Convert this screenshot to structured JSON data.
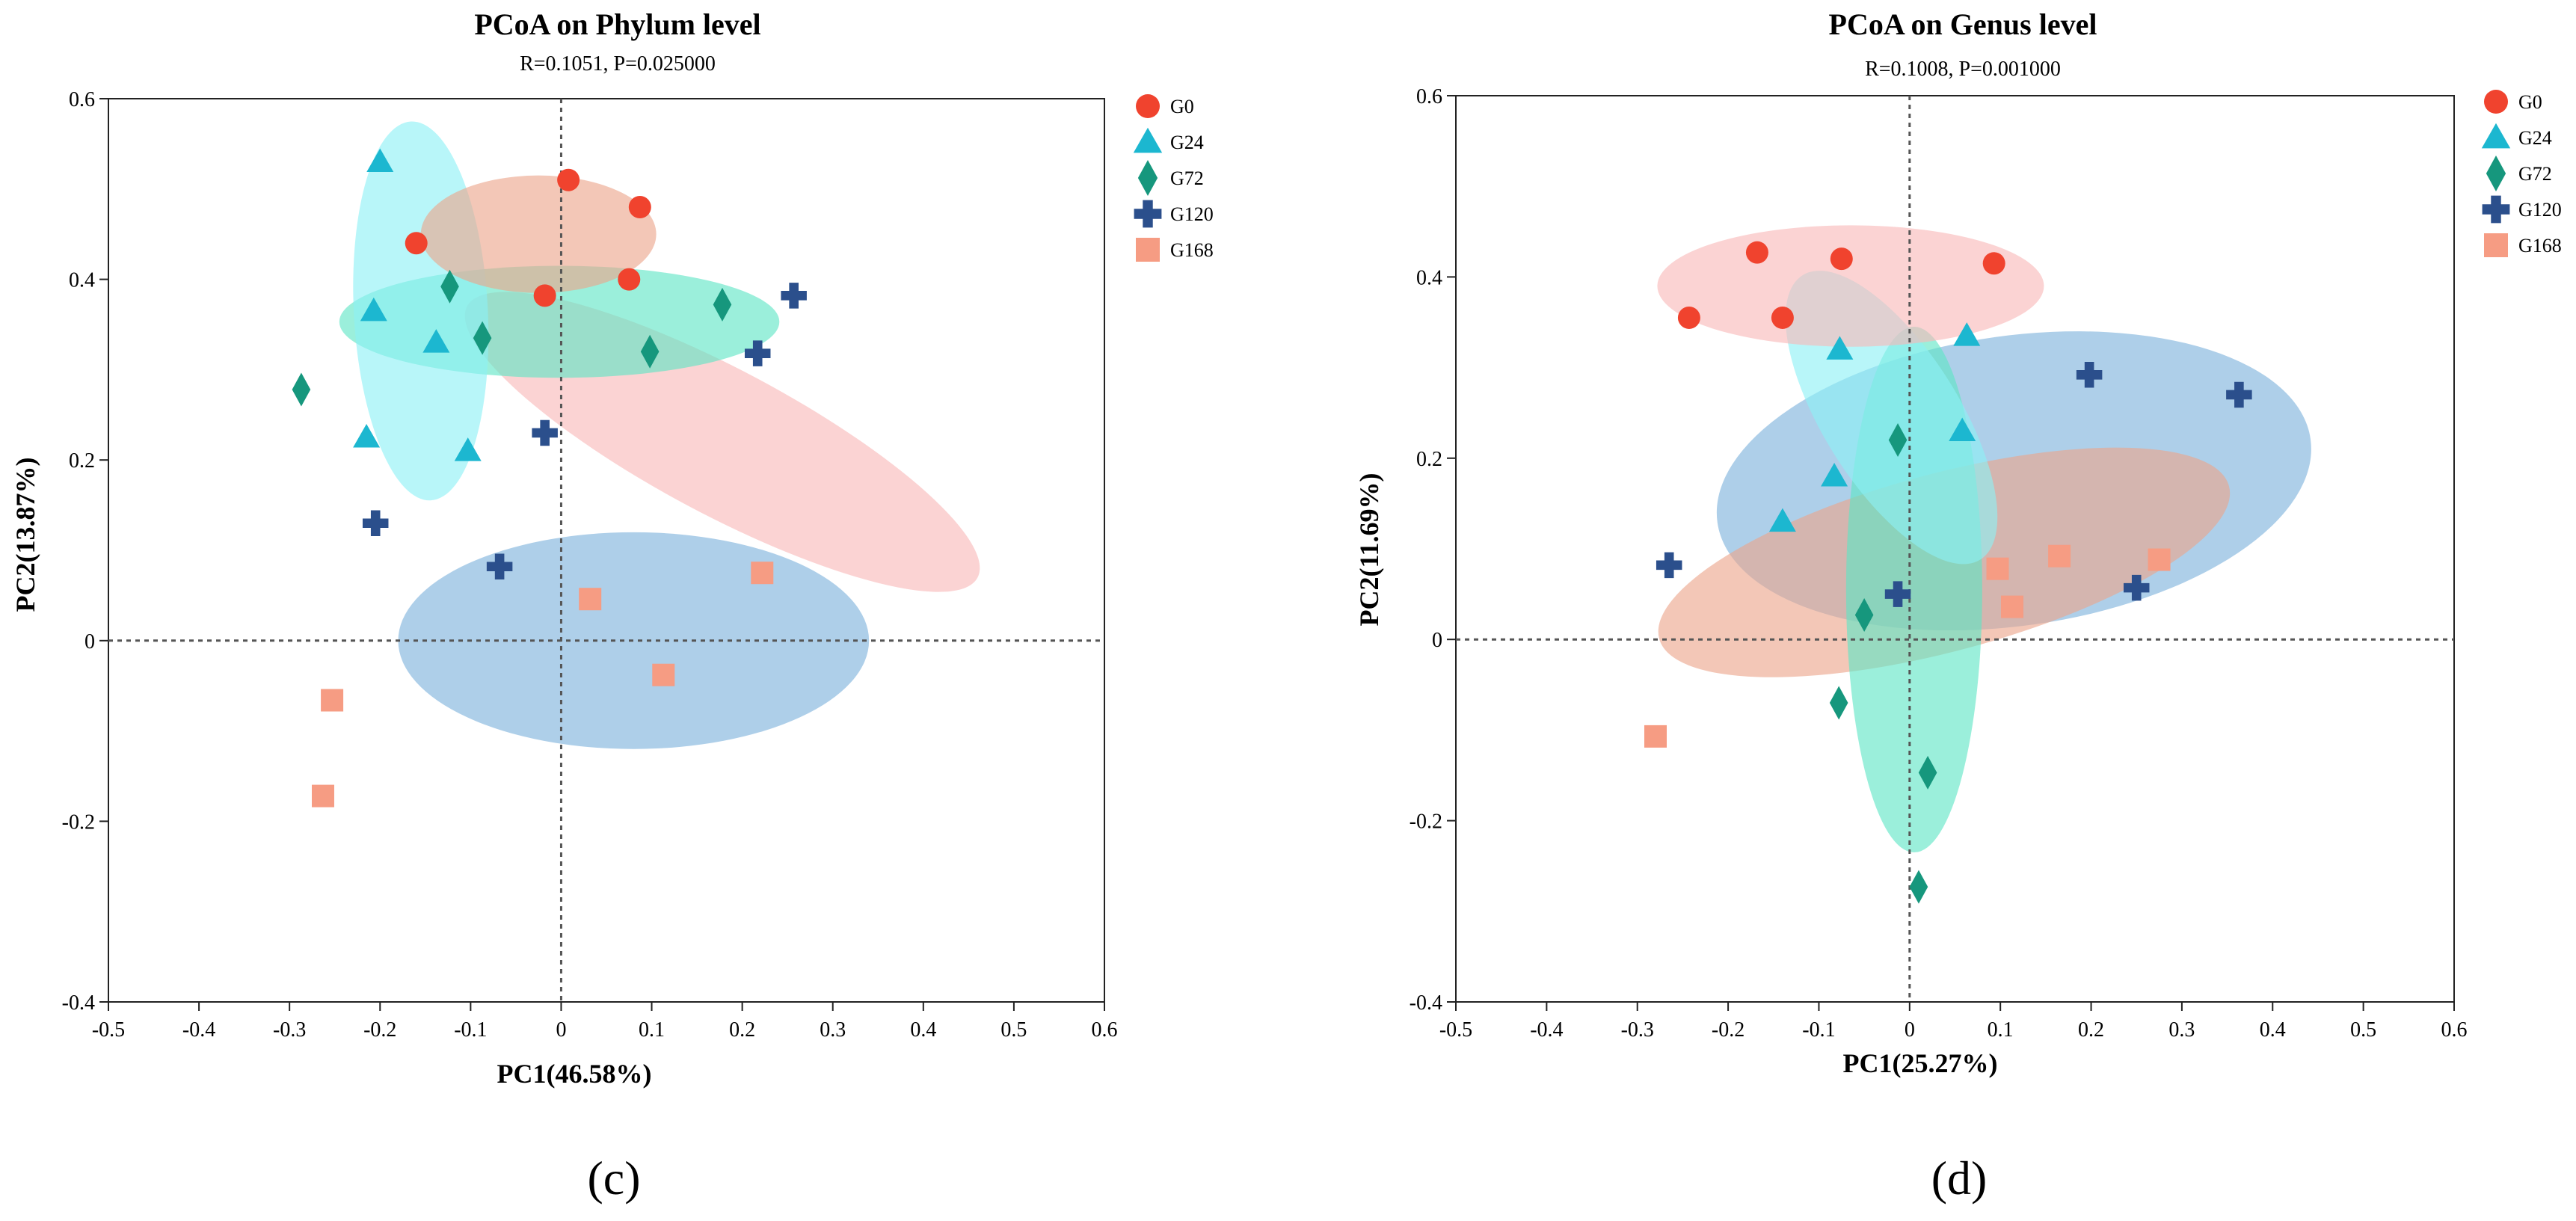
{
  "colors": {
    "G0": "#f0432e",
    "G24": "#1cb7d0",
    "G72": "#16977d",
    "G120": "#2b4f8c",
    "G168": "#f69c83"
  },
  "ellipse_colors": {
    "G0": "#f8b8b8",
    "G24": "#8df0f5",
    "G72": "#5ee5c5",
    "G120": "#7db1dc",
    "G168": "#eca48a"
  },
  "legend": [
    {
      "group": "G0",
      "label": "G0",
      "icon": "circle-icon"
    },
    {
      "group": "G24",
      "label": "G24",
      "icon": "triangle-icon"
    },
    {
      "group": "G72",
      "label": "G72",
      "icon": "diamond-icon"
    },
    {
      "group": "G120",
      "label": "G120",
      "icon": "plus-icon"
    },
    {
      "group": "G168",
      "label": "G168",
      "icon": "square-icon"
    }
  ],
  "panels": [
    {
      "label": "(c)"
    },
    {
      "label": "(d)"
    }
  ],
  "chart_data": [
    {
      "type": "scatter",
      "title": "PCoA on Phylum level",
      "subtitle": "R=0.1051, P=0.025000",
      "xlabel": "PC1(46.58%)",
      "ylabel": "PC2(13.87%)",
      "xlim": [
        -0.5,
        0.6
      ],
      "ylim": [
        -0.4,
        0.6
      ],
      "xticks": [
        -0.5,
        -0.4,
        -0.3,
        -0.2,
        -0.1,
        0,
        0.1,
        0.2,
        0.3,
        0.4,
        0.5,
        0.6
      ],
      "yticks": [
        -0.4,
        -0.2,
        0,
        0.2,
        0.4,
        0.6
      ],
      "xtick_labels": [
        "-0.5",
        "-0.4",
        "-0.3",
        "-0.2",
        "-0.1",
        "0",
        "0.1",
        "0.2",
        "0.3",
        "0.4",
        "0.5",
        "0.6"
      ],
      "ytick_labels": [
        "-0.4",
        "-0.2",
        "0",
        "0.2",
        "0.4",
        "0.6"
      ],
      "reference_lines": {
        "x": 0,
        "y": 0
      },
      "legend_position": "right",
      "series": [
        {
          "name": "G0",
          "marker": "circle",
          "points": [
            [
              0.008,
              0.51
            ],
            [
              0.087,
              0.48
            ],
            [
              -0.16,
              0.44
            ],
            [
              -0.018,
              0.382
            ],
            [
              0.075,
              0.4
            ]
          ]
        },
        {
          "name": "G24",
          "marker": "triangle",
          "points": [
            [
              -0.2,
              0.53
            ],
            [
              -0.207,
              0.365
            ],
            [
              -0.138,
              0.33
            ],
            [
              -0.215,
              0.225
            ],
            [
              -0.103,
              0.21
            ]
          ]
        },
        {
          "name": "G72",
          "marker": "diamond",
          "points": [
            [
              -0.123,
              0.392
            ],
            [
              -0.087,
              0.335
            ],
            [
              -0.287,
              0.278
            ],
            [
              0.178,
              0.372
            ],
            [
              0.098,
              0.32
            ]
          ]
        },
        {
          "name": "G120",
          "marker": "plus",
          "points": [
            [
              0.257,
              0.382
            ],
            [
              0.217,
              0.318
            ],
            [
              -0.018,
              0.23
            ],
            [
              -0.205,
              0.13
            ],
            [
              -0.068,
              0.082
            ]
          ]
        },
        {
          "name": "G168",
          "marker": "square",
          "points": [
            [
              0.222,
              0.075
            ],
            [
              0.032,
              0.046
            ],
            [
              0.113,
              -0.038
            ],
            [
              -0.253,
              -0.066
            ],
            [
              -0.263,
              -0.172
            ]
          ]
        }
      ],
      "ellipses": [
        {
          "group": "G0",
          "cx": 0.178,
          "cy": 0.22,
          "rx": 0.08,
          "ry": 0.32,
          "angle": 62
        },
        {
          "group": "G120",
          "cx": 0.08,
          "cy": 0.0,
          "rx": 0.26,
          "ry": 0.12,
          "angle": 0
        },
        {
          "group": "G72",
          "cx": -0.002,
          "cy": 0.353,
          "rx": 0.243,
          "ry": 0.062,
          "angle": 0
        },
        {
          "group": "G24",
          "cx": -0.155,
          "cy": 0.365,
          "rx": 0.074,
          "ry": 0.21,
          "angle": 3
        },
        {
          "group": "G168",
          "cx": -0.025,
          "cy": 0.45,
          "rx": 0.13,
          "ry": 0.065,
          "angle": 0
        }
      ]
    },
    {
      "type": "scatter",
      "title": "PCoA on Genus level",
      "subtitle": "R=0.1008, P=0.001000",
      "xlabel": "PC1(25.27%)",
      "ylabel": "PC2(11.69%)",
      "xlim": [
        -0.5,
        0.6
      ],
      "ylim": [
        -0.4,
        0.6
      ],
      "xticks": [
        -0.5,
        -0.4,
        -0.3,
        -0.2,
        -0.1,
        0,
        0.1,
        0.2,
        0.3,
        0.4,
        0.5,
        0.6
      ],
      "yticks": [
        -0.4,
        -0.2,
        0,
        0.2,
        0.4,
        0.6
      ],
      "xtick_labels": [
        "-0.5",
        "-0.4",
        "-0.3",
        "-0.2",
        "-0.1",
        "0",
        "0.1",
        "0.2",
        "0.3",
        "0.4",
        "0.5",
        "0.6"
      ],
      "ytick_labels": [
        "-0.4",
        "-0.2",
        "0",
        "0.2",
        "0.4",
        "0.6"
      ],
      "reference_lines": {
        "x": 0,
        "y": 0
      },
      "legend_position": "right",
      "series": [
        {
          "name": "G0",
          "marker": "circle",
          "points": [
            [
              -0.168,
              0.427
            ],
            [
              -0.075,
              0.42
            ],
            [
              0.093,
              0.415
            ],
            [
              -0.243,
              0.355
            ],
            [
              -0.14,
              0.355
            ]
          ]
        },
        {
          "name": "G24",
          "marker": "triangle",
          "points": [
            [
              -0.077,
              0.32
            ],
            [
              0.063,
              0.335
            ],
            [
              0.058,
              0.23
            ],
            [
              -0.083,
              0.18
            ],
            [
              -0.14,
              0.13
            ]
          ]
        },
        {
          "name": "G72",
          "marker": "diamond",
          "points": [
            [
              -0.013,
              0.22
            ],
            [
              -0.05,
              0.027
            ],
            [
              -0.078,
              -0.07
            ],
            [
              0.02,
              -0.147
            ],
            [
              0.01,
              -0.273
            ]
          ]
        },
        {
          "name": "G120",
          "marker": "plus",
          "points": [
            [
              0.198,
              0.292
            ],
            [
              0.363,
              0.27
            ],
            [
              0.25,
              0.057
            ],
            [
              -0.013,
              0.05
            ],
            [
              -0.265,
              0.082
            ]
          ]
        },
        {
          "name": "G168",
          "marker": "square",
          "points": [
            [
              0.275,
              0.088
            ],
            [
              0.165,
              0.092
            ],
            [
              0.097,
              0.078
            ],
            [
              0.113,
              0.036
            ],
            [
              -0.28,
              -0.107
            ]
          ]
        }
      ],
      "ellipses": [
        {
          "group": "G120",
          "cx": 0.115,
          "cy": 0.175,
          "rx": 0.33,
          "ry": 0.16,
          "angle": 8
        },
        {
          "group": "G168",
          "cx": 0.038,
          "cy": 0.085,
          "rx": 0.325,
          "ry": 0.098,
          "angle": 15
        },
        {
          "group": "G72",
          "cx": 0.005,
          "cy": 0.055,
          "rx": 0.075,
          "ry": 0.29,
          "angle": 0
        },
        {
          "group": "G24",
          "cx": -0.02,
          "cy": 0.245,
          "rx": 0.075,
          "ry": 0.185,
          "angle": 32
        },
        {
          "group": "G0",
          "cx": -0.065,
          "cy": 0.39,
          "rx": 0.213,
          "ry": 0.067,
          "angle": 0
        }
      ]
    }
  ]
}
